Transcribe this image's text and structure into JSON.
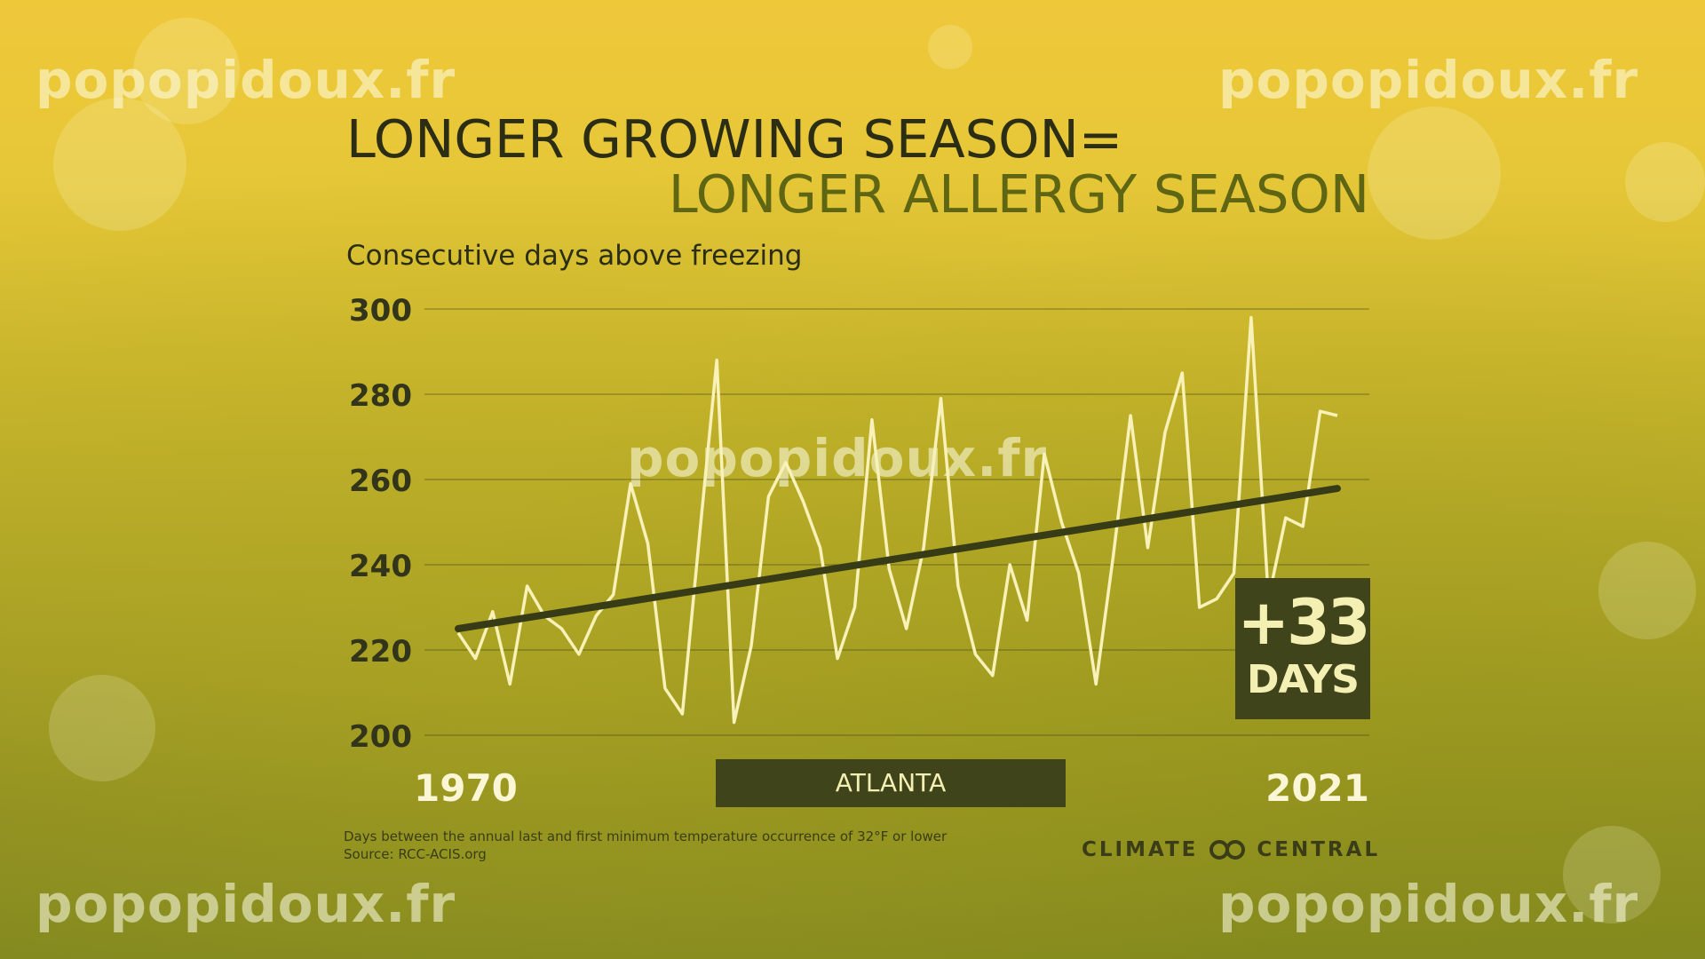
{
  "watermark": "popopidoux.fr",
  "title_line1": "LONGER GROWING SEASON=",
  "title_line2": "LONGER ALLERGY SEASON",
  "badge": {
    "value": "+33",
    "unit": "DAYS"
  },
  "city": "ATLANTA",
  "footnote_line1": "Days between the annual last and first minimum temperature occurrence of 32°F or lower",
  "footnote_line2": "Source: RCC-ACIS.org",
  "logo": {
    "left": "CLIMATE",
    "right": "CENTRAL",
    "icon": "rings-logo-icon"
  },
  "colors": {
    "line": "#f8f1b8",
    "trend": "#383c16",
    "badge_bg": "#40441a",
    "badge_text": "#f4efb2"
  },
  "chart_data": {
    "type": "line",
    "title": "LONGER GROWING SEASON= LONGER ALLERGY SEASON",
    "subtitle": "Consecutive days above freezing",
    "xlabel": "",
    "ylabel": "",
    "x_tick_labels": [
      "1970",
      "2021"
    ],
    "xlim": [
      1970,
      2021
    ],
    "ylim": [
      200,
      300
    ],
    "yticks": [
      200,
      220,
      240,
      260,
      280,
      300
    ],
    "grid": true,
    "x": [
      1970,
      1971,
      1972,
      1973,
      1974,
      1975,
      1976,
      1977,
      1978,
      1979,
      1980,
      1981,
      1982,
      1983,
      1984,
      1985,
      1986,
      1987,
      1988,
      1989,
      1990,
      1991,
      1992,
      1993,
      1994,
      1995,
      1996,
      1997,
      1998,
      1999,
      2000,
      2001,
      2002,
      2003,
      2004,
      2005,
      2006,
      2007,
      2008,
      2009,
      2010,
      2011,
      2012,
      2013,
      2014,
      2015,
      2016,
      2017,
      2018,
      2019,
      2020,
      2021
    ],
    "series": [
      {
        "values": [
          224,
          218,
          229,
          212,
          235,
          228,
          225,
          219,
          228,
          233,
          259,
          245,
          211,
          205,
          247,
          288,
          203,
          221,
          256,
          264,
          255,
          244,
          218,
          230,
          274,
          239,
          225,
          244,
          279,
          235,
          219,
          214,
          240,
          227,
          266,
          250,
          238,
          212,
          242,
          275,
          244,
          271,
          285,
          230,
          232,
          238,
          298,
          232,
          251,
          249,
          276,
          275
        ]
      },
      {
        "values": [
          225,
          257.9
        ],
        "x": [
          1970,
          2021
        ]
      }
    ]
  }
}
